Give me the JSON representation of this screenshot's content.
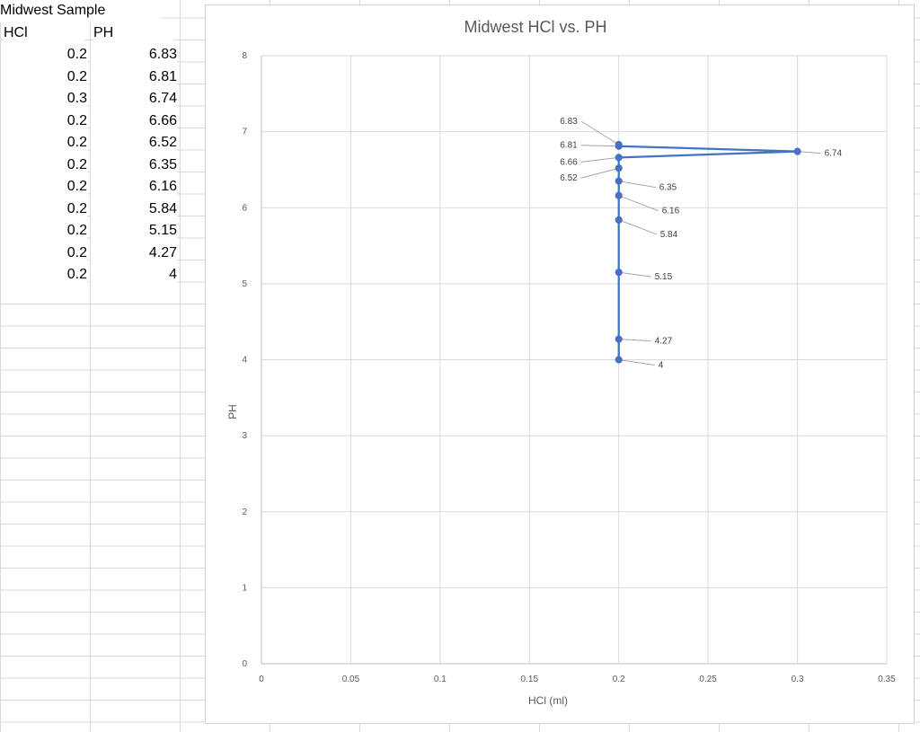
{
  "sheet": {
    "title": "Midwest Sample",
    "headers": [
      "HCl",
      "PH"
    ],
    "rows": [
      [
        "0.2",
        "6.83"
      ],
      [
        "0.2",
        "6.81"
      ],
      [
        "0.3",
        "6.74"
      ],
      [
        "0.2",
        "6.66"
      ],
      [
        "0.2",
        "6.52"
      ],
      [
        "0.2",
        "6.35"
      ],
      [
        "0.2",
        "6.16"
      ],
      [
        "0.2",
        "5.84"
      ],
      [
        "0.2",
        "5.15"
      ],
      [
        "0.2",
        "4.27"
      ],
      [
        "0.2",
        "4"
      ]
    ]
  },
  "chart_data": {
    "type": "line",
    "title": "Midwest HCl vs. PH",
    "xlabel": "HCl (ml)",
    "ylabel": "PH",
    "xlim": [
      0,
      0.35
    ],
    "ylim": [
      0,
      8
    ],
    "x_ticks": [
      "0",
      "0.05",
      "0.1",
      "0.15",
      "0.2",
      "0.25",
      "0.3",
      "0.35"
    ],
    "y_ticks": [
      "0",
      "1",
      "2",
      "3",
      "4",
      "5",
      "6",
      "7",
      "8"
    ],
    "grid": true,
    "series": [
      {
        "x": [
          0.2,
          0.2,
          0.3,
          0.2,
          0.2,
          0.2,
          0.2,
          0.2,
          0.2,
          0.2,
          0.2
        ],
        "y": [
          6.83,
          6.81,
          6.74,
          6.66,
          6.52,
          6.35,
          6.16,
          5.84,
          5.15,
          4.27,
          4
        ],
        "labels": [
          "6.83",
          "6.81",
          "6.74",
          "6.66",
          "6.52",
          "6.35",
          "6.16",
          "5.84",
          "5.15",
          "4.27",
          "4"
        ],
        "color": "#4472c4"
      }
    ],
    "colors": {
      "series": "#4472c4",
      "gridline": "#d9d9d9",
      "leader": "#a6a6a6"
    }
  }
}
